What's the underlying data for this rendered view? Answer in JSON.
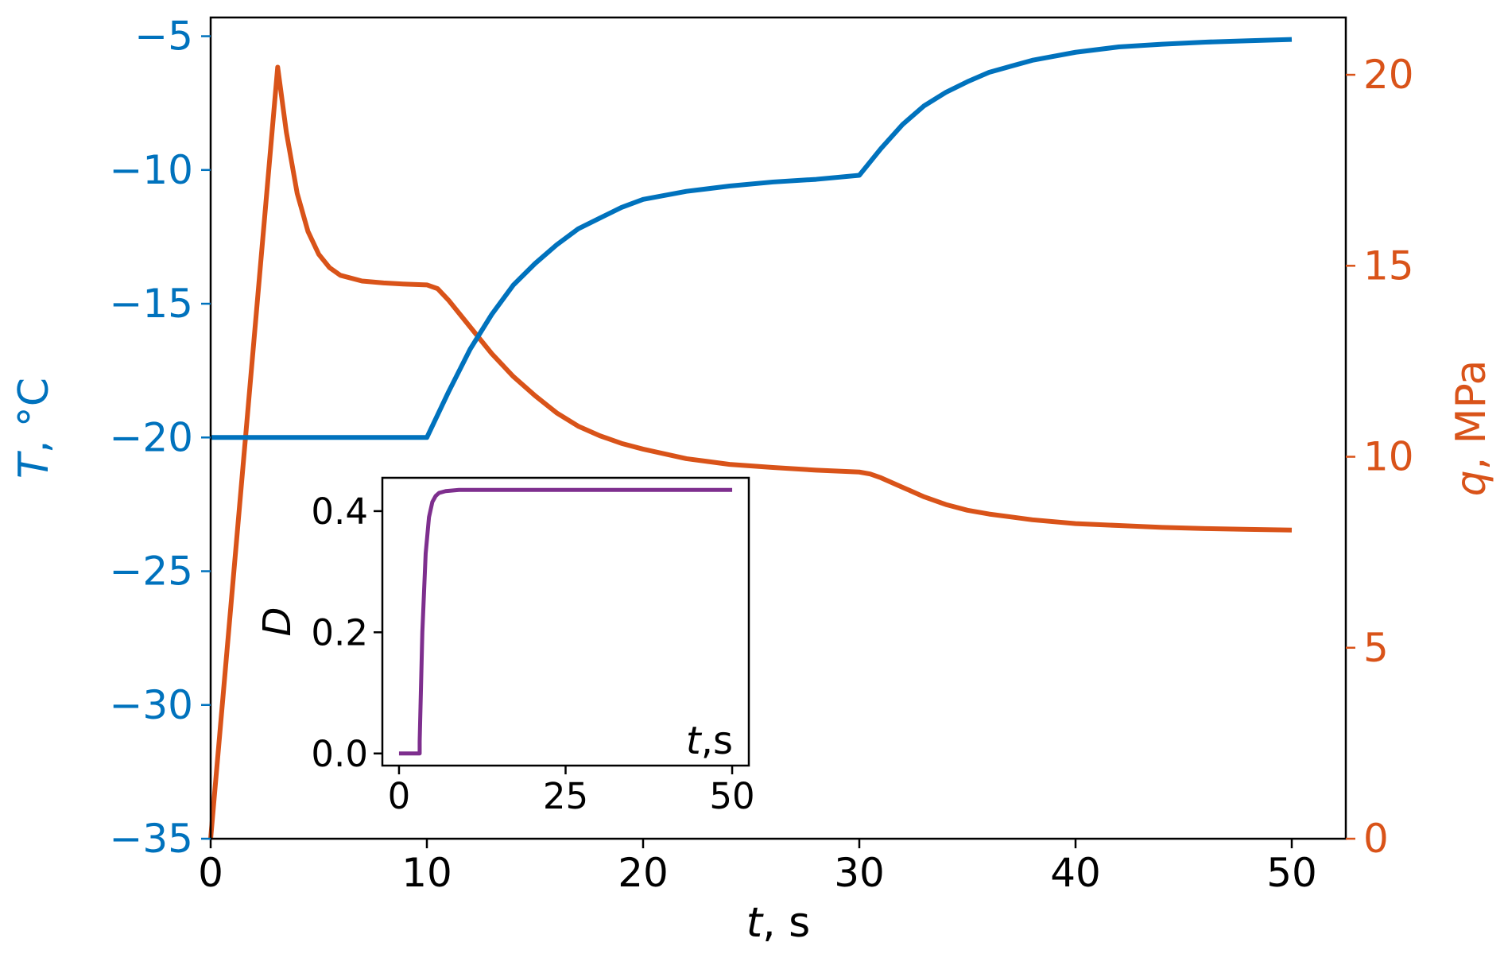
{
  "chart_data": [
    {
      "type": "line",
      "xlabel": {
        "var": "t",
        "unit": ", s"
      },
      "ylabel_left": {
        "var": "T",
        "unit": ", °C"
      },
      "ylabel_right": {
        "var": "q",
        "unit": ", MPa"
      },
      "xlim": [
        0,
        52.5
      ],
      "ylim_left": [
        -35,
        -4.3
      ],
      "ylim_right": [
        0,
        21.5
      ],
      "x_ticks": [
        "0",
        "10",
        "20",
        "30",
        "40",
        "50"
      ],
      "y_ticks_left": [
        "−35",
        "−30",
        "−25",
        "−20",
        "−15",
        "−10",
        "−5"
      ],
      "y_ticks_right": [
        "0",
        "5",
        "10",
        "15",
        "20"
      ],
      "grid": false,
      "colors": {
        "left_axis": "#0072bd",
        "right_axis": "#d95319"
      },
      "series": [
        {
          "axis": "left",
          "color": "#0072bd",
          "x": [
            0,
            10,
            11,
            12,
            13,
            14,
            15,
            16,
            17,
            18,
            19,
            20,
            22,
            24,
            26,
            28,
            30,
            31,
            32,
            33,
            34,
            35,
            36,
            38,
            40,
            42,
            44,
            46,
            48,
            50
          ],
          "y": [
            -20,
            -20,
            -18.3,
            -16.7,
            -15.4,
            -14.3,
            -13.5,
            -12.8,
            -12.2,
            -11.8,
            -11.4,
            -11.1,
            -10.8,
            -10.6,
            -10.45,
            -10.35,
            -10.2,
            -9.2,
            -8.3,
            -7.6,
            -7.1,
            -6.7,
            -6.35,
            -5.9,
            -5.6,
            -5.4,
            -5.3,
            -5.22,
            -5.17,
            -5.12
          ]
        },
        {
          "axis": "right",
          "color": "#d95319",
          "x": [
            0,
            3.1,
            3.5,
            4,
            4.5,
            5,
            5.5,
            6,
            7,
            8,
            9,
            10,
            10.5,
            11,
            12,
            13,
            14,
            15,
            16,
            17,
            18,
            19,
            20,
            22,
            24,
            26,
            28,
            30,
            30.5,
            31,
            32,
            33,
            34,
            35,
            36,
            38,
            40,
            42,
            44,
            46,
            48,
            50
          ],
          "y": [
            0,
            20.2,
            18.5,
            16.9,
            15.9,
            15.3,
            14.95,
            14.75,
            14.6,
            14.55,
            14.52,
            14.5,
            14.4,
            14.1,
            13.4,
            12.7,
            12.1,
            11.6,
            11.15,
            10.8,
            10.55,
            10.35,
            10.2,
            9.95,
            9.8,
            9.72,
            9.65,
            9.6,
            9.55,
            9.45,
            9.2,
            8.95,
            8.75,
            8.6,
            8.5,
            8.35,
            8.25,
            8.2,
            8.15,
            8.12,
            8.1,
            8.08
          ]
        }
      ]
    },
    {
      "type": "line",
      "inset": true,
      "xlabel": {
        "var": "t",
        "unit": ",s"
      },
      "ylabel": "D",
      "xlim": [
        -2.5,
        52.5
      ],
      "ylim": [
        -0.02,
        0.455
      ],
      "x_ticks": [
        "0",
        "25",
        "50"
      ],
      "y_ticks": [
        "0.0",
        "0.2",
        "0.4"
      ],
      "grid": false,
      "series": [
        {
          "color": "#7e2f8e",
          "x": [
            0,
            3.1,
            3.1,
            3.5,
            4,
            4.5,
            5,
            5.5,
            6,
            7,
            8,
            9,
            10,
            50
          ],
          "y": [
            0,
            0,
            0.02,
            0.2,
            0.33,
            0.39,
            0.415,
            0.425,
            0.43,
            0.433,
            0.434,
            0.435,
            0.435,
            0.435
          ]
        }
      ]
    }
  ]
}
